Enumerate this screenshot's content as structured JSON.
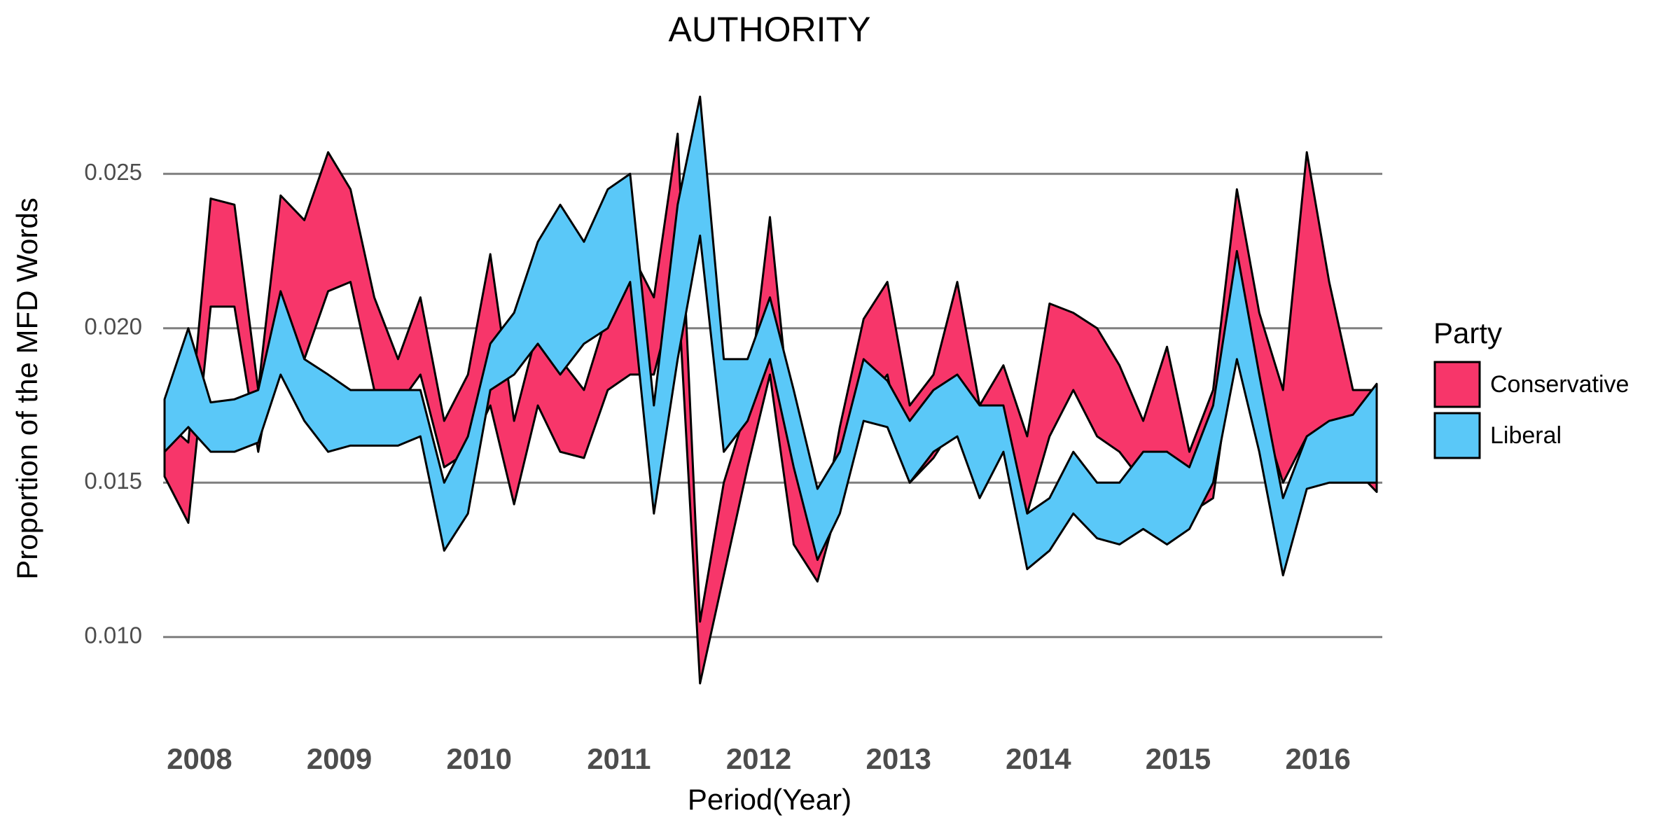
{
  "chart_data": {
    "type": "ribbon",
    "title": "AUTHORITY",
    "xlabel": "Period(Year)",
    "ylabel": "Proportion of the MFD Words",
    "legend_title": "Party",
    "legend_position": "right",
    "grid": true,
    "xlim": [
      2007.74,
      2016.46
    ],
    "xticks": [
      2008,
      2009,
      2010,
      2011,
      2012,
      2013,
      2014,
      2015,
      2016
    ],
    "ylim": [
      0.008,
      0.0275
    ],
    "yticks": [
      {
        "value": 0.01,
        "label": "0.010"
      },
      {
        "value": 0.015,
        "label": "0.015"
      },
      {
        "value": 0.02,
        "label": "0.020"
      },
      {
        "value": 0.025,
        "label": "0.025"
      }
    ],
    "x": [
      2007.75,
      2007.92,
      2008.08,
      2008.25,
      2008.42,
      2008.58,
      2008.75,
      2008.92,
      2009.08,
      2009.25,
      2009.42,
      2009.58,
      2009.75,
      2009.92,
      2010.08,
      2010.25,
      2010.42,
      2010.58,
      2010.75,
      2010.92,
      2011.08,
      2011.25,
      2011.42,
      2011.58,
      2011.75,
      2011.92,
      2012.08,
      2012.25,
      2012.42,
      2012.58,
      2012.75,
      2012.92,
      2013.08,
      2013.25,
      2013.42,
      2013.58,
      2013.75,
      2013.92,
      2014.08,
      2014.25,
      2014.42,
      2014.58,
      2014.75,
      2014.92,
      2015.08,
      2015.25,
      2015.42,
      2015.58,
      2015.75,
      2015.92,
      2016.08,
      2016.25,
      2016.42
    ],
    "series": [
      {
        "name": "Conservative",
        "color": "#f7366a",
        "lower": [
          0.0152,
          0.0137,
          0.0207,
          0.0207,
          0.016,
          0.02,
          0.019,
          0.0212,
          0.0215,
          0.018,
          0.0175,
          0.0185,
          0.0155,
          0.016,
          0.0175,
          0.0143,
          0.0175,
          0.016,
          0.0158,
          0.018,
          0.0185,
          0.0185,
          0.0215,
          0.0085,
          0.012,
          0.0155,
          0.0185,
          0.013,
          0.0118,
          0.0145,
          0.0175,
          0.0185,
          0.015,
          0.0158,
          0.017,
          0.016,
          0.017,
          0.014,
          0.0165,
          0.018,
          0.0165,
          0.016,
          0.015,
          0.016,
          0.014,
          0.0145,
          0.02,
          0.0175,
          0.015,
          0.0165,
          0.0165,
          0.0155,
          0.0147
        ],
        "upper": [
          0.017,
          0.0163,
          0.0242,
          0.024,
          0.018,
          0.0243,
          0.0235,
          0.0257,
          0.0245,
          0.021,
          0.019,
          0.021,
          0.017,
          0.0185,
          0.0224,
          0.017,
          0.02,
          0.019,
          0.018,
          0.0205,
          0.0225,
          0.021,
          0.0263,
          0.0105,
          0.015,
          0.0175,
          0.0236,
          0.016,
          0.0128,
          0.0168,
          0.0203,
          0.0215,
          0.0175,
          0.0185,
          0.0215,
          0.0175,
          0.0188,
          0.0165,
          0.0208,
          0.0205,
          0.02,
          0.0188,
          0.017,
          0.0194,
          0.016,
          0.018,
          0.0245,
          0.0205,
          0.018,
          0.0257,
          0.0215,
          0.018,
          0.018
        ]
      },
      {
        "name": "Liberal",
        "color": "#5ac8f8",
        "lower": [
          0.016,
          0.0168,
          0.016,
          0.016,
          0.0163,
          0.0185,
          0.017,
          0.016,
          0.0162,
          0.0162,
          0.0162,
          0.0165,
          0.0128,
          0.014,
          0.018,
          0.0185,
          0.0195,
          0.0185,
          0.0195,
          0.02,
          0.0215,
          0.014,
          0.019,
          0.023,
          0.016,
          0.017,
          0.019,
          0.0155,
          0.0125,
          0.014,
          0.017,
          0.0168,
          0.015,
          0.016,
          0.0165,
          0.0145,
          0.016,
          0.0122,
          0.0128,
          0.014,
          0.0132,
          0.013,
          0.0135,
          0.013,
          0.0135,
          0.015,
          0.019,
          0.016,
          0.012,
          0.0148,
          0.015,
          0.015,
          0.015
        ],
        "upper": [
          0.0177,
          0.02,
          0.0176,
          0.0177,
          0.018,
          0.0212,
          0.019,
          0.0185,
          0.018,
          0.018,
          0.018,
          0.018,
          0.015,
          0.0165,
          0.0195,
          0.0205,
          0.0228,
          0.024,
          0.0228,
          0.0245,
          0.025,
          0.0175,
          0.024,
          0.0275,
          0.019,
          0.019,
          0.021,
          0.018,
          0.0148,
          0.016,
          0.019,
          0.0183,
          0.017,
          0.018,
          0.0185,
          0.0175,
          0.0175,
          0.014,
          0.0145,
          0.016,
          0.015,
          0.015,
          0.016,
          0.016,
          0.0155,
          0.0175,
          0.0225,
          0.0185,
          0.0145,
          0.0165,
          0.017,
          0.0172,
          0.0182
        ]
      }
    ]
  }
}
